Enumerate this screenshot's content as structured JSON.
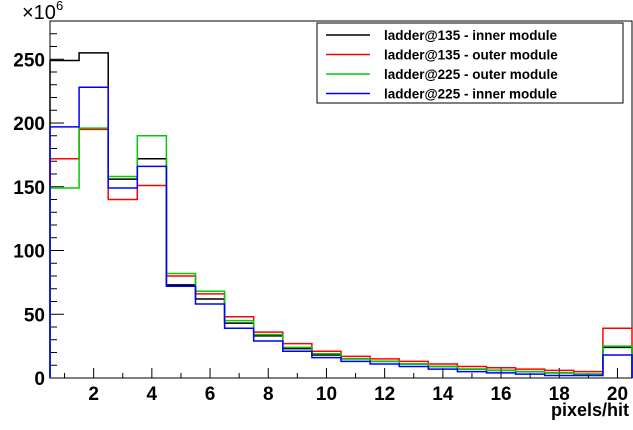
{
  "chart_data": {
    "type": "histogram",
    "xlabel": "pixels/hit",
    "ylabel": "",
    "title": "",
    "y_multiplier_base": "×10",
    "y_multiplier_exp": "6",
    "xlim": [
      0.5,
      20.5
    ],
    "ylim": [
      0,
      280
    ],
    "x_tick_labels": [
      "2",
      "4",
      "6",
      "8",
      "10",
      "12",
      "14",
      "16",
      "18",
      "20"
    ],
    "y_tick_labels": [
      "0",
      "50",
      "100",
      "150",
      "200",
      "250"
    ],
    "bins": [
      1,
      2,
      3,
      4,
      5,
      6,
      7,
      8,
      9,
      10,
      11,
      12,
      13,
      14,
      15,
      16,
      17,
      18,
      19,
      20
    ],
    "legend_position": "top-right",
    "series": [
      {
        "name": "ladder@135 - inner  module",
        "color": "#000000",
        "values": [
          249,
          255,
          156,
          172,
          73,
          62,
          43,
          33,
          23,
          18,
          15,
          13,
          11,
          9,
          7,
          6,
          5,
          4,
          3,
          24
        ]
      },
      {
        "name": "ladder@135 - outer  module",
        "color": "#ff0000",
        "values": [
          172,
          195,
          140,
          151,
          80,
          66,
          48,
          36,
          27,
          21,
          17,
          15,
          13,
          11,
          9,
          8,
          7,
          6,
          5,
          39
        ]
      },
      {
        "name": "ladder@225 - outer  module",
        "color": "#00cc00",
        "values": [
          149,
          196,
          158,
          190,
          82,
          68,
          45,
          34,
          24,
          19,
          15,
          13,
          11,
          9,
          7,
          6,
          5,
          4,
          3,
          25
        ]
      },
      {
        "name": "ladder@225 - inner  module",
        "color": "#0000ff",
        "values": [
          197,
          228,
          149,
          166,
          72,
          58,
          39,
          29,
          21,
          16,
          13,
          11,
          9,
          7,
          5,
          4,
          3,
          2,
          2,
          18
        ]
      }
    ]
  }
}
